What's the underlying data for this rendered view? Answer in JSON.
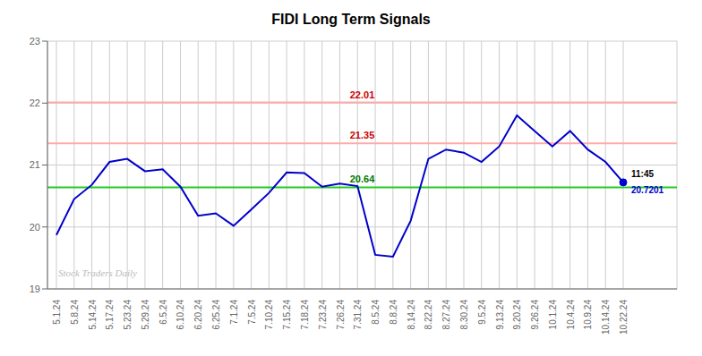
{
  "chart_data": {
    "type": "line",
    "title": "FIDI Long Term Signals",
    "categories": [
      "5.1.24",
      "5.8.24",
      "5.14.24",
      "5.17.24",
      "5.23.24",
      "5.29.24",
      "6.5.24",
      "6.10.24",
      "6.20.24",
      "6.25.24",
      "7.1.24",
      "7.5.24",
      "7.10.24",
      "7.15.24",
      "7.18.24",
      "7.23.24",
      "7.26.24",
      "7.31.24",
      "8.5.24",
      "8.8.24",
      "8.14.24",
      "8.22.24",
      "8.27.24",
      "8.30.24",
      "9.5.24",
      "9.13.24",
      "9.20.24",
      "9.26.24",
      "10.1.24",
      "10.4.24",
      "10.9.24",
      "10.14.24",
      "10.22.24"
    ],
    "values": [
      19.87,
      20.45,
      20.68,
      21.05,
      21.1,
      20.9,
      20.93,
      20.65,
      20.18,
      20.22,
      20.02,
      20.28,
      20.55,
      20.88,
      20.87,
      20.65,
      20.7,
      20.66,
      19.55,
      19.52,
      20.1,
      21.1,
      21.25,
      21.2,
      21.05,
      21.3,
      21.8,
      21.55,
      21.3,
      21.55,
      21.25,
      21.05,
      20.7201
    ],
    "color": "#0000cc",
    "ylim": [
      19,
      23
    ],
    "yticks": [
      19,
      20,
      21,
      22,
      23
    ],
    "grid": true,
    "hlines": [
      {
        "value": 20.64,
        "label": "20.64",
        "color": "#22cc22",
        "label_color": "#007700"
      },
      {
        "value": 21.35,
        "label": "21.35",
        "color": "#ffaaaa",
        "label_color": "#cc0000"
      },
      {
        "value": 22.01,
        "label": "22.01",
        "color": "#ffaaaa",
        "label_color": "#cc0000"
      }
    ],
    "endpoint_annotations": [
      {
        "text": "11:45",
        "color": "#000000"
      },
      {
        "text": "20.7201",
        "color": "#0000cc"
      }
    ],
    "watermark": {
      "text": "Stock Traders Daily",
      "color": "#bbbbbb"
    }
  }
}
